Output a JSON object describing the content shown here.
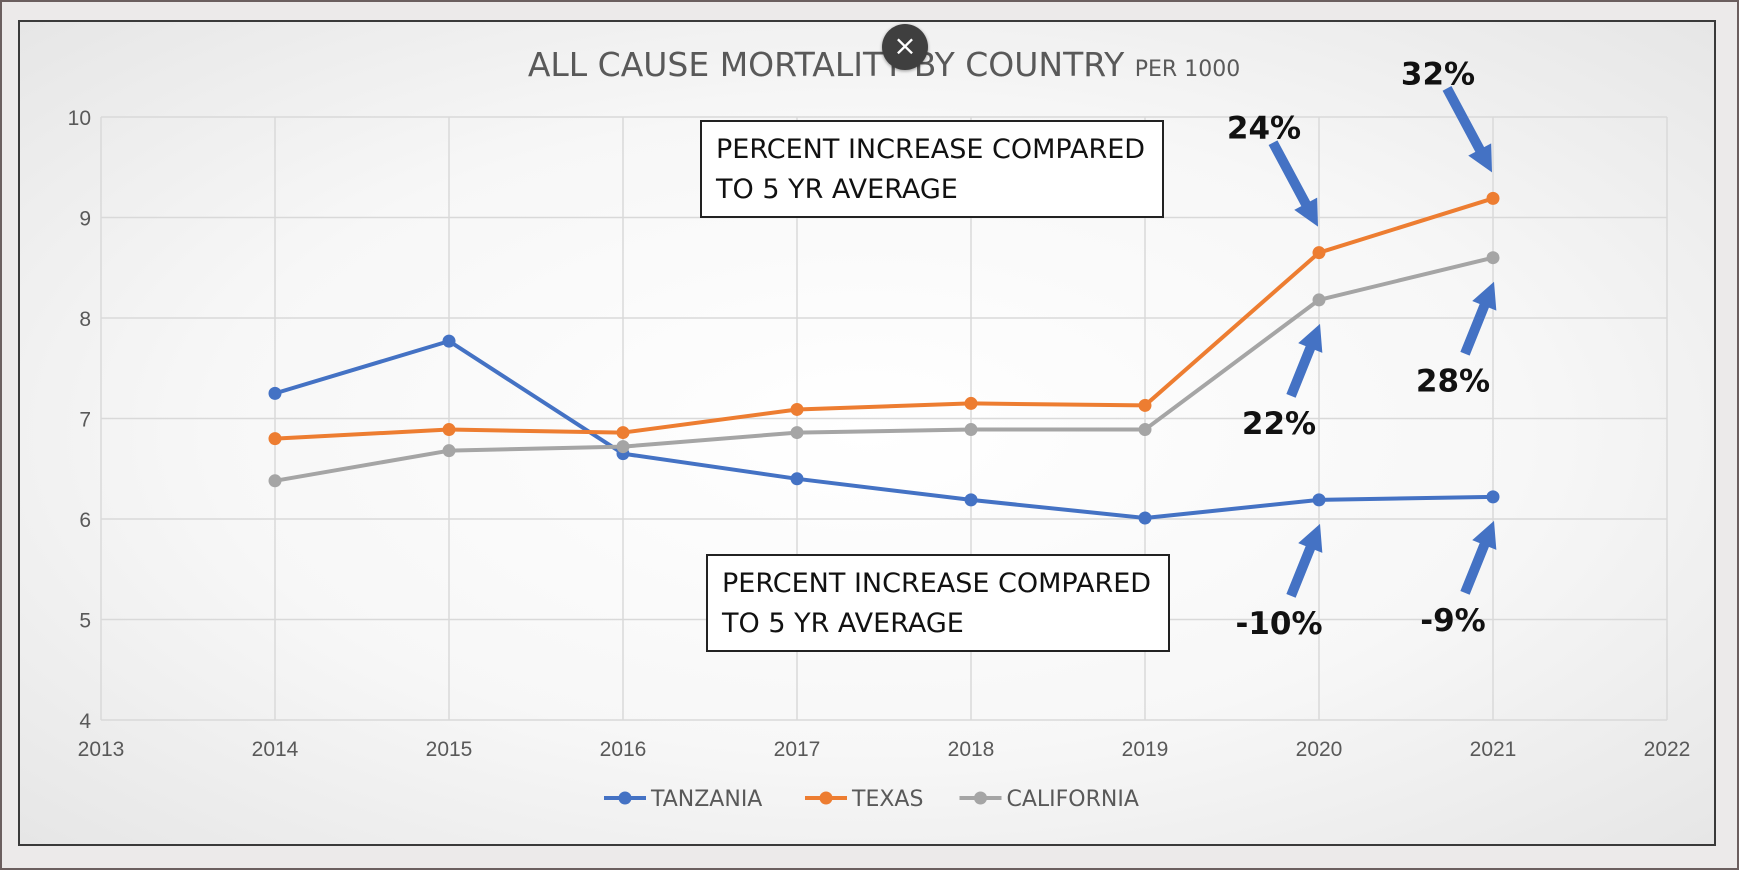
{
  "chart_data": {
    "type": "line",
    "title": "ALL CAUSE MORTALITY BY COUNTRY",
    "subtitle": "PER 1000",
    "xlim": [
      2013,
      2022
    ],
    "ylim": [
      4,
      10
    ],
    "x_ticks": [
      "2013",
      "2014",
      "2015",
      "2016",
      "2017",
      "2018",
      "2019",
      "2020",
      "2021",
      "2022"
    ],
    "y_ticks": [
      "10",
      "9",
      "8",
      "7",
      "6",
      "5",
      "4"
    ],
    "grid": true,
    "legend_position": "bottom",
    "series": [
      {
        "name": "TANZANIA",
        "color": "#4472c4",
        "x": [
          2014,
          2015,
          2016,
          2017,
          2018,
          2019,
          2020,
          2021
        ],
        "values": [
          7.25,
          7.77,
          6.65,
          6.4,
          6.19,
          6.01,
          6.19,
          6.22
        ]
      },
      {
        "name": "TEXAS",
        "color": "#ed7d31",
        "x": [
          2014,
          2015,
          2016,
          2017,
          2018,
          2019,
          2020,
          2021
        ],
        "values": [
          6.8,
          6.89,
          6.86,
          7.09,
          7.15,
          7.13,
          8.65,
          9.19
        ]
      },
      {
        "name": "CALIFORNIA",
        "color": "#a5a5a5",
        "x": [
          2014,
          2015,
          2016,
          2017,
          2018,
          2019,
          2020,
          2021
        ],
        "values": [
          6.38,
          6.68,
          6.72,
          6.86,
          6.89,
          6.89,
          8.18,
          8.6
        ]
      }
    ],
    "annotations": [
      {
        "text": "24%",
        "x": 2020,
        "series": "TEXAS"
      },
      {
        "text": "32%",
        "x": 2021,
        "series": "TEXAS"
      },
      {
        "text": "22%",
        "x": 2020,
        "series": "CALIFORNIA"
      },
      {
        "text": "28%",
        "x": 2021,
        "series": "CALIFORNIA"
      },
      {
        "text": "-10%",
        "x": 2020,
        "series": "TANZANIA"
      },
      {
        "text": "-9%",
        "x": 2021,
        "series": "TANZANIA"
      }
    ],
    "annotation_color": "#4472c4"
  },
  "notes": {
    "upper": [
      "PERCENT INCREASE COMPARED",
      "TO 5 YR AVERAGE"
    ],
    "lower": [
      "PERCENT INCREASE COMPARED",
      "TO 5 YR AVERAGE"
    ]
  },
  "close_icon": "×"
}
